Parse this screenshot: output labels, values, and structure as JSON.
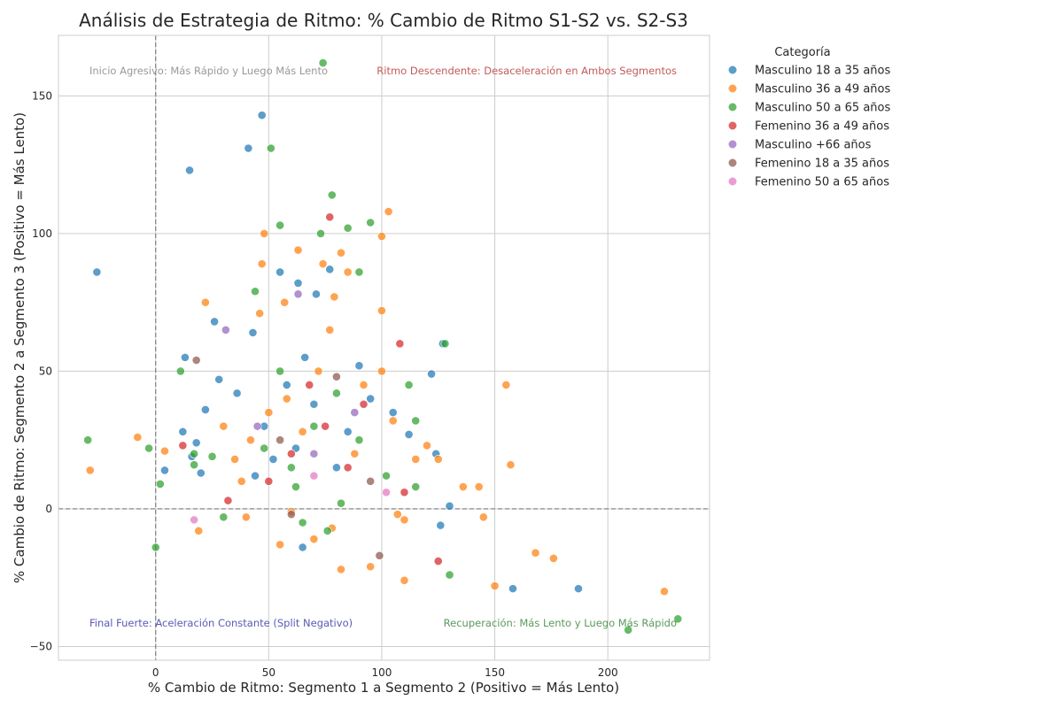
{
  "chart_data": {
    "type": "scatter",
    "title": "Análisis de Estrategia de Ritmo: % Cambio de Ritmo S1-S2 vs. S2-S3",
    "xlabel": "% Cambio de Ritmo: Segmento 1 a Segmento 2 (Positivo = Más Lento)",
    "ylabel": "% Cambio de Ritmo: Segmento 2 a Segmento 3 (Positivo = Más Lento)",
    "xlim": [
      -43,
      245
    ],
    "ylim": [
      -55,
      172
    ],
    "xticks": [
      0,
      50,
      100,
      150,
      200
    ],
    "yticks": [
      -50,
      0,
      50,
      100,
      150
    ],
    "grid": true,
    "reference_lines": {
      "x": 0,
      "y": 0
    },
    "legend": {
      "title": "Categoría",
      "placement": "outside-right"
    },
    "annotations": [
      {
        "text": "Inicio Agresivo: Más Rápido y Luego Más Lento",
        "color": "#999999",
        "quadrant": "top-left"
      },
      {
        "text": "Ritmo Descendente: Desaceleración en Ambos Segmentos",
        "color": "#c45a5a",
        "quadrant": "top-right"
      },
      {
        "text": "Final Fuerte: Aceleración Constante (Split Negativo)",
        "color": "#5a5ab4",
        "quadrant": "bottom-left"
      },
      {
        "text": "Recuperación: Más Lento y Luego Más Rápido",
        "color": "#5a9a5a",
        "quadrant": "bottom-right"
      }
    ],
    "series": [
      {
        "name": "Masculino 18 a 35 años",
        "color": "#1f77b4",
        "points": [
          [
            -26,
            86
          ],
          [
            15,
            123
          ],
          [
            41,
            131
          ],
          [
            47,
            143
          ],
          [
            26,
            68
          ],
          [
            13,
            55
          ],
          [
            55,
            86
          ],
          [
            63,
            82
          ],
          [
            71,
            78
          ],
          [
            77,
            87
          ],
          [
            43,
            64
          ],
          [
            36,
            42
          ],
          [
            28,
            47
          ],
          [
            22,
            36
          ],
          [
            18,
            24
          ],
          [
            12,
            28
          ],
          [
            16,
            19
          ],
          [
            20,
            13
          ],
          [
            4,
            14
          ],
          [
            122,
            49
          ],
          [
            127,
            60
          ],
          [
            105,
            35
          ],
          [
            112,
            27
          ],
          [
            124,
            20
          ],
          [
            130,
            1
          ],
          [
            126,
            -6
          ],
          [
            158,
            -29
          ],
          [
            187,
            -29
          ],
          [
            65,
            -14
          ],
          [
            48,
            30
          ],
          [
            58,
            45
          ],
          [
            62,
            22
          ],
          [
            70,
            38
          ],
          [
            85,
            28
          ],
          [
            90,
            52
          ],
          [
            95,
            40
          ],
          [
            52,
            18
          ],
          [
            66,
            55
          ],
          [
            80,
            15
          ],
          [
            44,
            12
          ]
        ]
      },
      {
        "name": "Masculino 36 a 49 años",
        "color": "#ff7f0e",
        "points": [
          [
            -29,
            14
          ],
          [
            -8,
            26
          ],
          [
            4,
            21
          ],
          [
            19,
            -8
          ],
          [
            22,
            75
          ],
          [
            40,
            -3
          ],
          [
            46,
            71
          ],
          [
            47,
            89
          ],
          [
            48,
            100
          ],
          [
            57,
            75
          ],
          [
            63,
            94
          ],
          [
            74,
            89
          ],
          [
            77,
            65
          ],
          [
            79,
            77
          ],
          [
            82,
            93
          ],
          [
            85,
            86
          ],
          [
            100,
            72
          ],
          [
            100,
            99
          ],
          [
            103,
            108
          ],
          [
            155,
            45
          ],
          [
            157,
            16
          ],
          [
            136,
            8
          ],
          [
            143,
            8
          ],
          [
            145,
            -3
          ],
          [
            150,
            -28
          ],
          [
            168,
            -16
          ],
          [
            176,
            -18
          ],
          [
            225,
            -30
          ],
          [
            110,
            -26
          ],
          [
            107,
            -2
          ],
          [
            110,
            -4
          ],
          [
            95,
            -21
          ],
          [
            82,
            -22
          ],
          [
            70,
            -11
          ],
          [
            78,
            -7
          ],
          [
            55,
            -13
          ],
          [
            60,
            -1
          ],
          [
            115,
            18
          ],
          [
            120,
            23
          ],
          [
            125,
            18
          ],
          [
            105,
            32
          ],
          [
            100,
            50
          ],
          [
            92,
            45
          ],
          [
            35,
            18
          ],
          [
            42,
            25
          ],
          [
            50,
            35
          ],
          [
            58,
            40
          ],
          [
            65,
            28
          ],
          [
            72,
            50
          ],
          [
            88,
            20
          ],
          [
            30,
            30
          ],
          [
            38,
            10
          ]
        ]
      },
      {
        "name": "Masculino 50 a 65 años",
        "color": "#2ca02c",
        "points": [
          [
            -30,
            25
          ],
          [
            -3,
            22
          ],
          [
            0,
            -14
          ],
          [
            2,
            9
          ],
          [
            11,
            50
          ],
          [
            17,
            20
          ],
          [
            17,
            16
          ],
          [
            25,
            19
          ],
          [
            30,
            -3
          ],
          [
            44,
            79
          ],
          [
            51,
            131
          ],
          [
            55,
            103
          ],
          [
            73,
            100
          ],
          [
            74,
            162
          ],
          [
            78,
            114
          ],
          [
            85,
            102
          ],
          [
            90,
            86
          ],
          [
            95,
            104
          ],
          [
            112,
            45
          ],
          [
            115,
            32
          ],
          [
            115,
            8
          ],
          [
            128,
            60
          ],
          [
            130,
            -24
          ],
          [
            209,
            -44
          ],
          [
            231,
            -40
          ],
          [
            76,
            -8
          ],
          [
            82,
            2
          ],
          [
            65,
            -5
          ],
          [
            60,
            15
          ],
          [
            70,
            30
          ],
          [
            80,
            42
          ],
          [
            90,
            25
          ],
          [
            102,
            12
          ],
          [
            48,
            22
          ],
          [
            55,
            50
          ],
          [
            62,
            8
          ]
        ]
      },
      {
        "name": "Femenino 36 a 49 años",
        "color": "#d62728",
        "points": [
          [
            12,
            23
          ],
          [
            32,
            3
          ],
          [
            77,
            106
          ],
          [
            108,
            60
          ],
          [
            110,
            6
          ],
          [
            125,
            -19
          ],
          [
            60,
            20
          ],
          [
            68,
            45
          ],
          [
            75,
            30
          ],
          [
            85,
            15
          ],
          [
            50,
            10
          ],
          [
            92,
            38
          ]
        ]
      },
      {
        "name": "Masculino +66 años",
        "color": "#9467bd",
        "points": [
          [
            31,
            65
          ],
          [
            63,
            78
          ],
          [
            45,
            30
          ],
          [
            70,
            20
          ],
          [
            88,
            35
          ]
        ]
      },
      {
        "name": "Femenino 18 a 35 años",
        "color": "#8c564b",
        "points": [
          [
            18,
            54
          ],
          [
            60,
            -2
          ],
          [
            99,
            -17
          ],
          [
            55,
            25
          ],
          [
            80,
            48
          ],
          [
            95,
            10
          ]
        ]
      },
      {
        "name": "Femenino 50 a 65 años",
        "color": "#e377c2",
        "points": [
          [
            17,
            -4
          ],
          [
            70,
            12
          ],
          [
            102,
            6
          ]
        ]
      }
    ]
  }
}
